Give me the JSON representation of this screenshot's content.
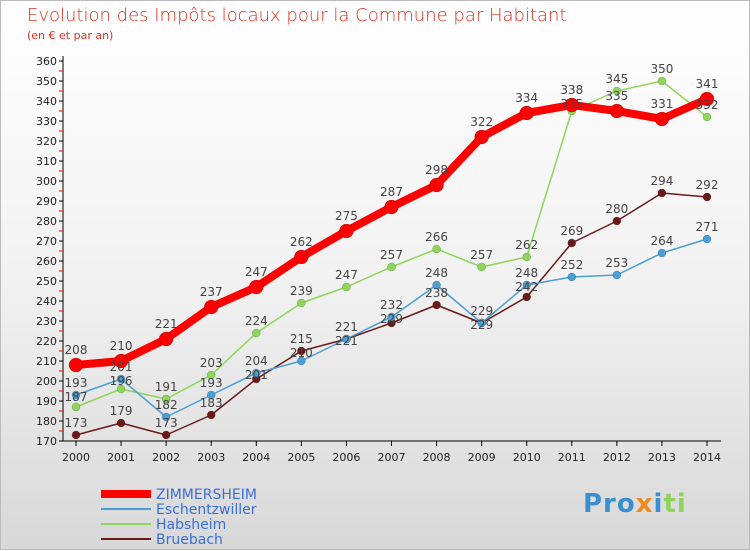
{
  "chart_data": {
    "type": "line",
    "title": "Evolution des Impôts locaux pour la Commune par Habitant",
    "subtitle": "(en € et par an)",
    "xlabel": "",
    "ylabel": "",
    "x": [
      2000,
      2001,
      2002,
      2003,
      2004,
      2005,
      2006,
      2007,
      2008,
      2009,
      2010,
      2011,
      2012,
      2013,
      2014
    ],
    "ylim": [
      170,
      360
    ],
    "yticks": [
      170,
      180,
      190,
      200,
      210,
      220,
      230,
      240,
      250,
      260,
      270,
      280,
      290,
      300,
      310,
      320,
      330,
      340,
      350,
      360
    ],
    "legend_position": "bottom-left",
    "series": [
      {
        "name": "ZIMMERSHEIM",
        "color": "#ff0000",
        "values": [
          208,
          210,
          221,
          237,
          247,
          262,
          275,
          287,
          298,
          322,
          334,
          338,
          335,
          331,
          341
        ]
      },
      {
        "name": "Eschentzwiller",
        "color": "#4a9fd6",
        "values": [
          193,
          201,
          182,
          193,
          204,
          210,
          221,
          232,
          248,
          229,
          248,
          252,
          253,
          264,
          271
        ]
      },
      {
        "name": "Habsheim",
        "color": "#8ed65a",
        "values": [
          187,
          196,
          191,
          203,
          224,
          239,
          247,
          257,
          266,
          257,
          262,
          335,
          345,
          350,
          332
        ]
      },
      {
        "name": "Bruebach",
        "color": "#6b1a1a",
        "values": [
          173,
          179,
          173,
          183,
          201,
          215,
          221,
          229,
          238,
          229,
          242,
          269,
          280,
          294,
          292
        ]
      }
    ]
  },
  "logo": {
    "text": "Proxiti"
  }
}
